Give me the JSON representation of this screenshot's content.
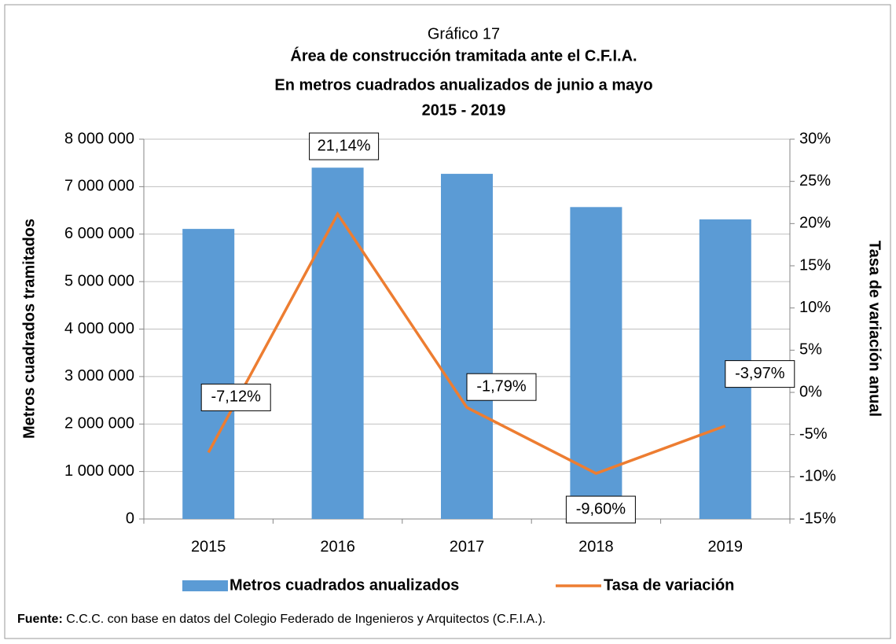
{
  "chart_data": {
    "type": "bar_line",
    "title": "Gráfico 17",
    "subtitle": [
      "Área de construcción tramitada ante el C.F.I.A.",
      "En metros cuadrados anualizados de junio a mayo",
      "2015 - 2019"
    ],
    "categories": [
      "2015",
      "2016",
      "2017",
      "2018",
      "2019"
    ],
    "series": [
      {
        "name": "Metros cuadrados anualizados",
        "color": "#5b9bd5",
        "values": [
          6110000,
          7400000,
          7270000,
          6570000,
          6310000
        ]
      },
      {
        "name": "Tasa de variación",
        "color": "#ed7d31",
        "axis": "y2",
        "values": [
          -7.12,
          21.14,
          -1.79,
          -9.6,
          -3.97
        ],
        "value_labels": [
          "-7,12%",
          "21,14%",
          "-1,79%",
          "-9,60%",
          "-3,97%"
        ]
      }
    ],
    "ylabel": "Metros cuadrados tramitados",
    "y2label": "Tasa de variación anual",
    "ylim": [
      0,
      8000000
    ],
    "yticks": [
      0,
      {
        "value": 1000000,
        "label": "1 000 000"
      },
      {
        "value": 2000000,
        "label": "2 000 000"
      },
      {
        "value": 3000000,
        "label": "3 000 000"
      },
      {
        "value": 4000000,
        "label": "4 000 000"
      },
      {
        "value": 5000000,
        "label": "5 000 000"
      },
      {
        "value": 6000000,
        "label": "6 000 000"
      },
      {
        "value": 7000000,
        "label": "7 000 000"
      },
      {
        "value": 8000000,
        "label": "8 000 000"
      }
    ],
    "y2lim": [
      -15,
      30
    ],
    "y2ticks": [
      {
        "value": -15,
        "label": "-15%"
      },
      {
        "value": -10,
        "label": "-10%"
      },
      {
        "value": -5,
        "label": "-5%"
      },
      {
        "value": 0,
        "label": "0%"
      },
      {
        "value": 5,
        "label": "5%"
      },
      {
        "value": 10,
        "label": "10%"
      },
      {
        "value": 15,
        "label": "15%"
      },
      {
        "value": 20,
        "label": "20%"
      },
      {
        "value": 25,
        "label": "25%"
      },
      {
        "value": 30,
        "label": "30%"
      }
    ],
    "grid": true,
    "legend": "bottom",
    "source": {
      "label": "Fuente:",
      "text": "C.C.C. con base en datos del Colegio Federado de Ingenieros y Arquitectos (C.F.I.A.)."
    }
  }
}
